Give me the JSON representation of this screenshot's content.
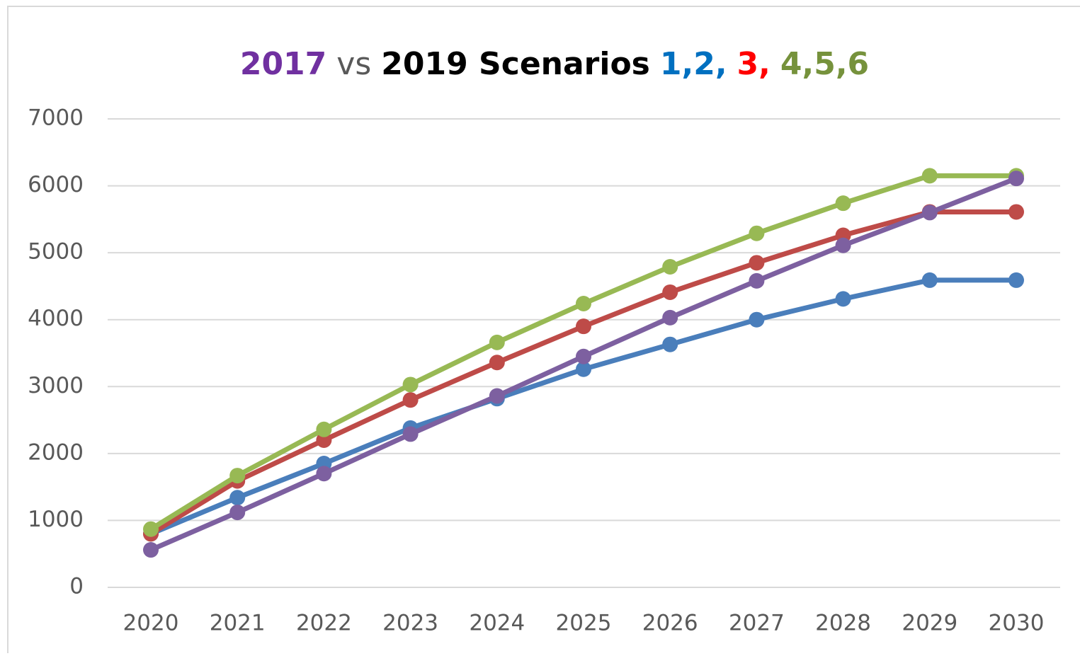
{
  "chart_data": {
    "type": "line",
    "title_parts": [
      {
        "text": "2017",
        "color": "#7030a0",
        "weight": "bold"
      },
      {
        "text": "vs",
        "color": "#595959",
        "weight": "normal"
      },
      {
        "text": "2019 Scenarios",
        "color": "#000000",
        "weight": "bold"
      },
      {
        "text": "1,2,",
        "color": "#0070c0",
        "weight": "bold"
      },
      {
        "text": "3,",
        "color": "#ff0000",
        "weight": "bold"
      },
      {
        "text": "4,5,6",
        "color": "#76923c",
        "weight": "bold"
      }
    ],
    "categories": [
      "2020",
      "2021",
      "2022",
      "2023",
      "2024",
      "2025",
      "2026",
      "2027",
      "2028",
      "2029",
      "2030"
    ],
    "series": [
      {
        "color": "#4a7ebb",
        "values": [
          800,
          1340,
          1850,
          2380,
          2820,
          3260,
          3630,
          4000,
          4310,
          4590,
          4590
        ]
      },
      {
        "color": "#be4b48",
        "values": [
          800,
          1590,
          2200,
          2800,
          3360,
          3900,
          4410,
          4850,
          5260,
          5610,
          5610
        ]
      },
      {
        "color": "#98b954",
        "values": [
          870,
          1670,
          2360,
          3030,
          3660,
          4240,
          4790,
          5290,
          5740,
          6150,
          6150
        ]
      },
      {
        "color": "#7d60a0",
        "values": [
          560,
          1120,
          1700,
          2290,
          2860,
          3450,
          4030,
          4580,
          5110,
          5600,
          6110
        ]
      }
    ],
    "ylim": [
      0,
      7000
    ],
    "yticks": [
      0,
      1000,
      2000,
      3000,
      4000,
      5000,
      6000,
      7000
    ],
    "grid": true
  }
}
